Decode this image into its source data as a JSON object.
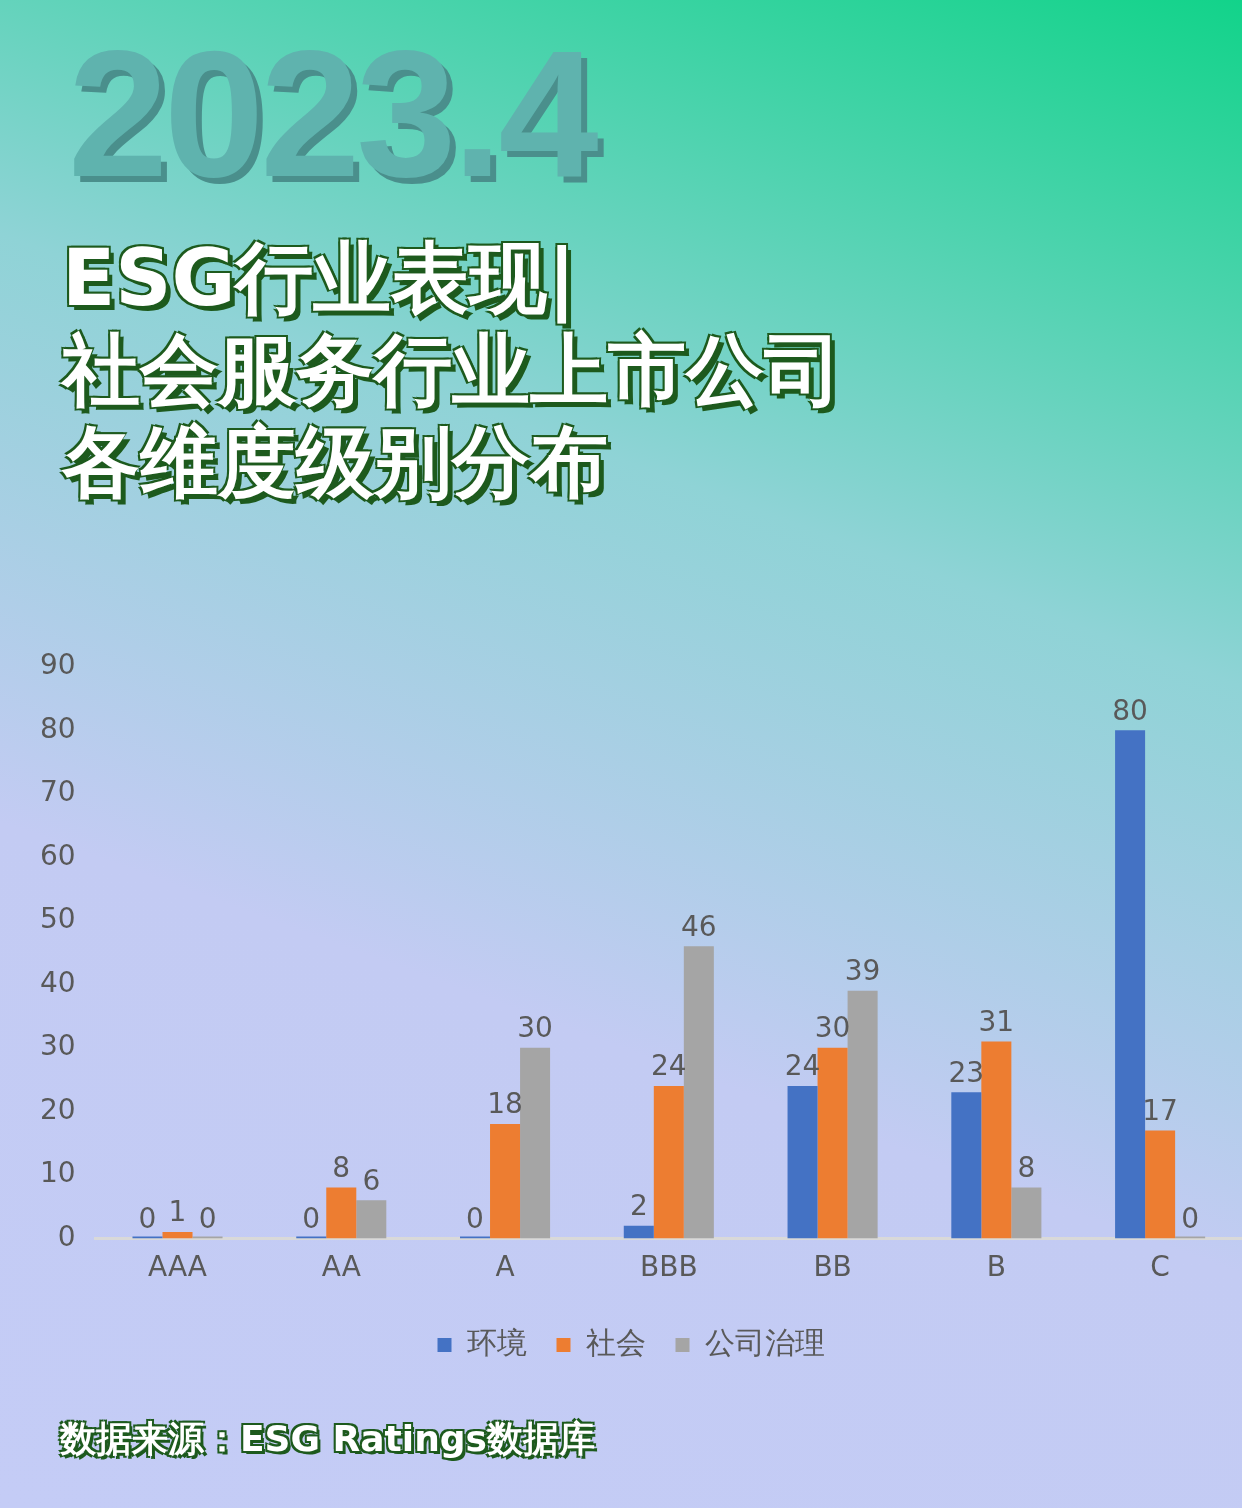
{
  "chart_data": {
    "type": "bar",
    "title": "ESG行业表现|",
    "subtitle": "社会服务行业上市公司各维度级别分布",
    "categories": [
      "AAA",
      "AA",
      "A",
      "BBB",
      "BB",
      "B",
      "C"
    ],
    "series": [
      {
        "name": "环境",
        "color": "#4472c4",
        "values": [
          0,
          0,
          0,
          2,
          24,
          23,
          80
        ]
      },
      {
        "name": "社会",
        "color": "#ed7d31",
        "values": [
          1,
          8,
          18,
          24,
          30,
          31,
          17
        ]
      },
      {
        "name": "公司治理",
        "color": "#a5a5a5",
        "values": [
          0,
          6,
          30,
          46,
          39,
          8,
          0
        ]
      }
    ],
    "ylim": [
      0,
      90
    ],
    "yticks": [
      0,
      10,
      20,
      30,
      40,
      50,
      60,
      70,
      80,
      90
    ],
    "grid": false,
    "legend": "bottom",
    "data_labels": true,
    "annotations": [
      "2023.4",
      "数据来源：ESG Ratings数据库"
    ]
  }
}
